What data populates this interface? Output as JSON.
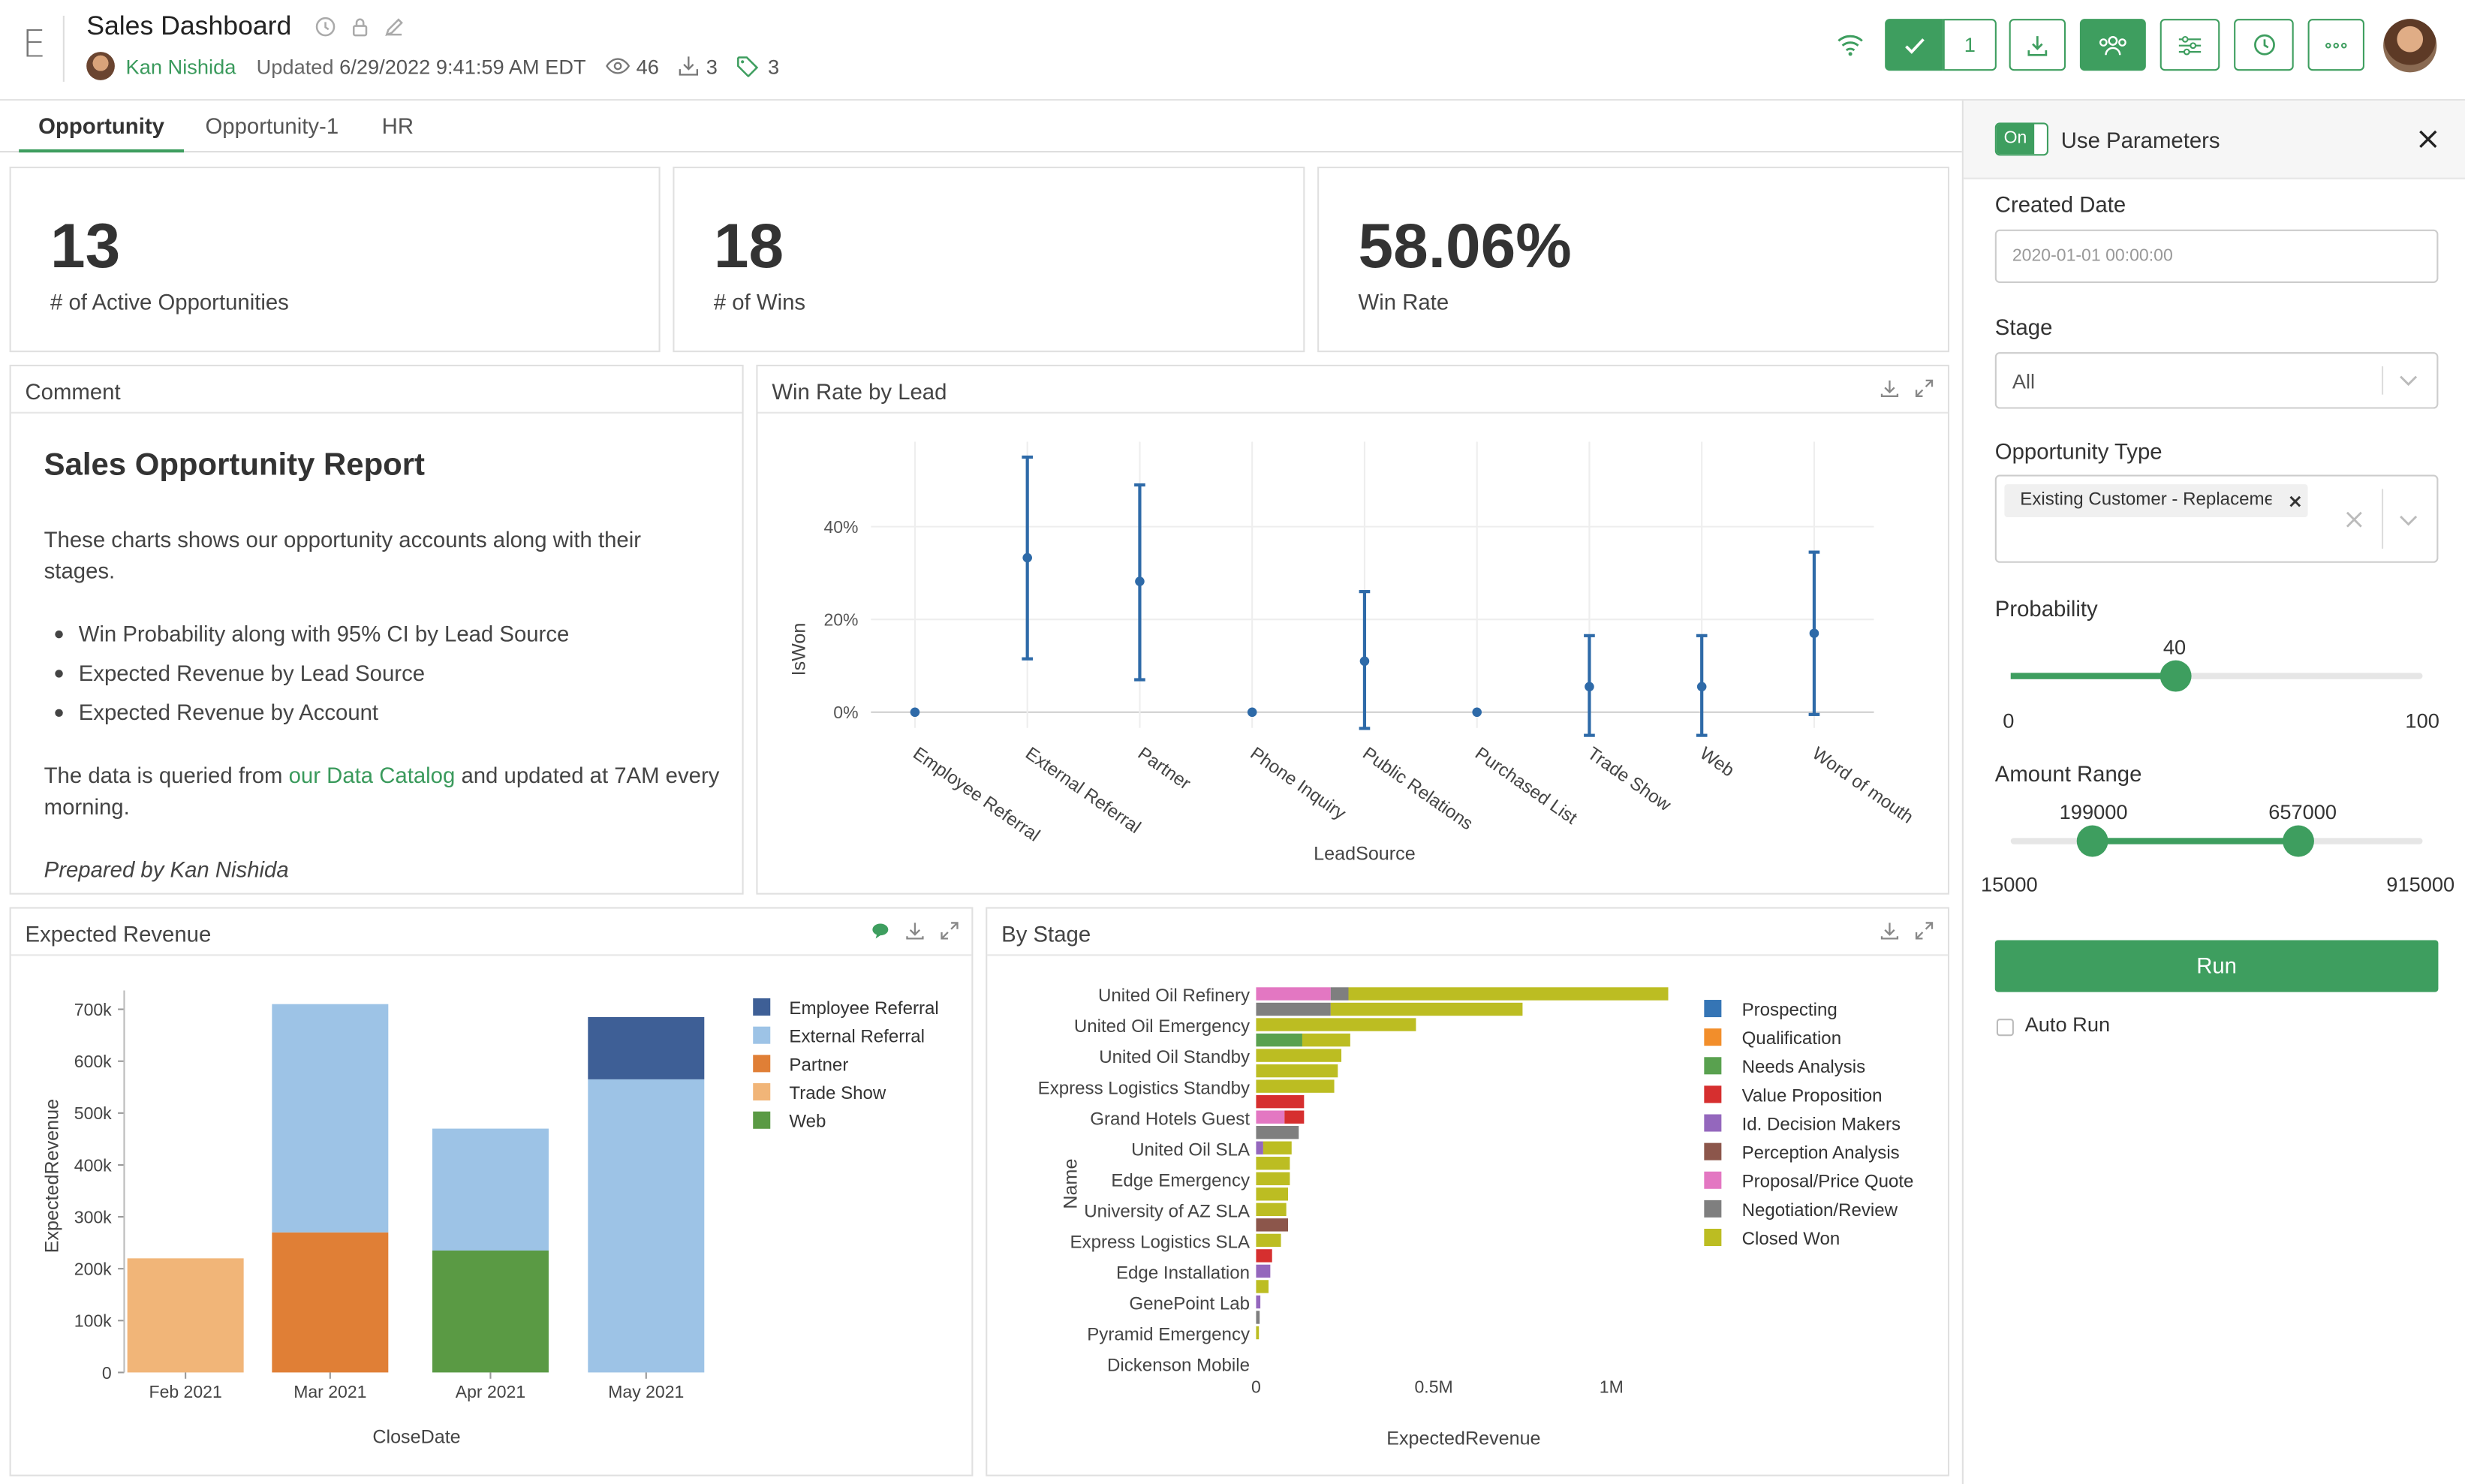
{
  "header": {
    "logo": "E",
    "title": "Sales Dashboard",
    "author": "Kan Nishida",
    "updated_label": "Updated",
    "updated_value": "6/29/2022 9:41:59 AM EDT",
    "views": "46",
    "downloads": "3",
    "tags": "3",
    "publish_count": "1"
  },
  "tabs": [
    "Opportunity",
    "Opportunity-1",
    "HR"
  ],
  "kpis": [
    {
      "value": "13",
      "label": "# of Active Opportunities"
    },
    {
      "value": "18",
      "label": "# of Wins"
    },
    {
      "value": "58.06%",
      "label": "Win Rate"
    }
  ],
  "comment": {
    "panel_title": "Comment",
    "heading": "Sales Opportunity Report",
    "intro": "These charts shows our opportunity accounts along with their stages.",
    "bullets": [
      "Win Probability along with 95% CI by Lead Source",
      "Expected Revenue by Lead Source",
      "Expected Revenue by Account"
    ],
    "data_pre": "The data is queried from ",
    "data_link": "our Data Catalog",
    "data_post": " and updated at 7AM every morning.",
    "prepared": "Prepared by Kan Nishida"
  },
  "panels": {
    "winrate": "Win Rate by Lead",
    "revenue": "Expected Revenue",
    "stage": "By Stage"
  },
  "colors": {
    "accent": "#3e9e5f",
    "employee_referral": "#3e5f96",
    "external_referral": "#9dc3e6",
    "partner": "#e07f36",
    "trade_show": "#f1b578",
    "web": "#5a9a44",
    "prospecting": "#3575b5",
    "qualification": "#f28e2b",
    "needs_analysis": "#59a14f",
    "value_proposition": "#d62f2f",
    "id_decision": "#9467bd",
    "perception": "#8c564b",
    "proposal": "#e377c2",
    "negotiation": "#7f7f7f",
    "closed_won": "#bcbd22"
  },
  "chart_data": [
    {
      "type": "scatter",
      "title": "Win Rate by Lead",
      "xlabel": "LeadSource",
      "ylabel": "IsWon",
      "categories": [
        "Employee Referral",
        "External Referral",
        "Partner",
        "Phone Inquiry",
        "Public Relations",
        "Purchased List",
        "Trade Show",
        "Web",
        "Word of mouth"
      ],
      "values": [
        0,
        33.3,
        28.2,
        0,
        11,
        0,
        5.5,
        5.5,
        17
      ],
      "ci_low": [
        0,
        11.5,
        7,
        0,
        -3.5,
        0,
        -5,
        -5,
        -0.5
      ],
      "ci_high": [
        0,
        55,
        49,
        0,
        26,
        0,
        16.5,
        16.5,
        34.5
      ],
      "ylim": [
        -5,
        60
      ],
      "yticks": [
        "0%",
        "20%",
        "40%"
      ],
      "grid": true
    },
    {
      "type": "bar",
      "title": "Expected Revenue",
      "xlabel": "CloseDate",
      "ylabel": "ExpectedRevenue",
      "categories": [
        "Feb 2021",
        "Mar 2021",
        "Apr 2021",
        "May 2021"
      ],
      "series": [
        {
          "name": "Employee Referral",
          "values": [
            0,
            0,
            0,
            120000
          ]
        },
        {
          "name": "External Referral",
          "values": [
            0,
            440000,
            235000,
            565000
          ]
        },
        {
          "name": "Partner",
          "values": [
            0,
            270000,
            0,
            0
          ]
        },
        {
          "name": "Trade Show",
          "values": [
            220000,
            0,
            0,
            0
          ]
        },
        {
          "name": "Web",
          "values": [
            0,
            0,
            235000,
            0
          ]
        }
      ],
      "yticks": [
        "0",
        "100k",
        "200k",
        "300k",
        "400k",
        "500k",
        "600k",
        "700k"
      ],
      "ylim": [
        0,
        700000
      ],
      "legend": "right"
    },
    {
      "type": "bar",
      "orientation": "horizontal",
      "title": "By Stage",
      "xlabel": "ExpectedRevenue",
      "ylabel": "Name",
      "labeled_names": [
        "United Oil Refinery",
        "United Oil Emergency",
        "United Oil Standby",
        "Express Logistics Standby",
        "Grand Hotels Guest",
        "United Oil SLA",
        "Edge Emergency",
        "University of AZ SLA",
        "Express Logistics SLA",
        "Edge Installation",
        "GenePoint Lab",
        "Pyramid Emergency",
        "Dickenson Mobile"
      ],
      "stages": [
        "Prospecting",
        "Qualification",
        "Needs Analysis",
        "Value Proposition",
        "Id. Decision Makers",
        "Perception Analysis",
        "Proposal/Price Quote",
        "Negotiation/Review",
        "Closed Won"
      ],
      "rows": [
        [
          [
            "Proposal/Price Quote",
            210000
          ],
          [
            "Negotiation/Review",
            50000
          ],
          [
            "Closed Won",
            900000
          ]
        ],
        [
          [
            "Negotiation/Review",
            210000
          ],
          [
            "Closed Won",
            540000
          ]
        ],
        [
          [
            "Closed Won",
            450000
          ]
        ],
        [
          [
            "Needs Analysis",
            130000
          ],
          [
            "Closed Won",
            135000
          ]
        ],
        [
          [
            "Closed Won",
            240000
          ]
        ],
        [
          [
            "Closed Won",
            230000
          ]
        ],
        [
          [
            "Closed Won",
            220000
          ]
        ],
        [
          [
            "Value Proposition",
            135000
          ]
        ],
        [
          [
            "Proposal/Price Quote",
            80000
          ],
          [
            "Value Proposition",
            55000
          ]
        ],
        [
          [
            "Negotiation/Review",
            120000
          ]
        ],
        [
          [
            "Id. Decision Makers",
            20000
          ],
          [
            "Closed Won",
            80000
          ]
        ],
        [
          [
            "Closed Won",
            95000
          ]
        ],
        [
          [
            "Closed Won",
            95000
          ]
        ],
        [
          [
            "Closed Won",
            90000
          ]
        ],
        [
          [
            "Closed Won",
            85000
          ]
        ],
        [
          [
            "Perception Analysis",
            90000
          ]
        ],
        [
          [
            "Closed Won",
            70000
          ]
        ],
        [
          [
            "Value Proposition",
            45000
          ]
        ],
        [
          [
            "Id. Decision Makers",
            40000
          ]
        ],
        [
          [
            "Closed Won",
            35000
          ]
        ],
        [
          [
            "Id. Decision Makers",
            12000
          ]
        ],
        [
          [
            "Negotiation/Review",
            10000
          ]
        ],
        [
          [
            "Closed Won",
            8000
          ]
        ]
      ],
      "xticks": [
        "0",
        "0.5M",
        "1M"
      ],
      "xlim": [
        0,
        1150000
      ],
      "legend": "right"
    }
  ],
  "parameters": {
    "toggle": "On",
    "title": "Use Parameters",
    "created_date_label": "Created Date",
    "created_date_placeholder": "2020-01-01 00:00:00",
    "stage_label": "Stage",
    "stage_value": "All",
    "opportunity_type_label": "Opportunity Type",
    "opportunity_type_tag": "Existing Customer - Replacemer",
    "probability_label": "Probability",
    "probability_value": "40",
    "probability_fraction": 0.4,
    "probability_min": "0",
    "probability_max": "100",
    "amount_label": "Amount Range",
    "amount_low": "199000",
    "amount_high": "657000",
    "amount_low_fraction": 0.2,
    "amount_high_fraction": 0.7,
    "amount_min": "15000",
    "amount_max": "915000",
    "run": "Run",
    "auto_run": "Auto Run"
  }
}
